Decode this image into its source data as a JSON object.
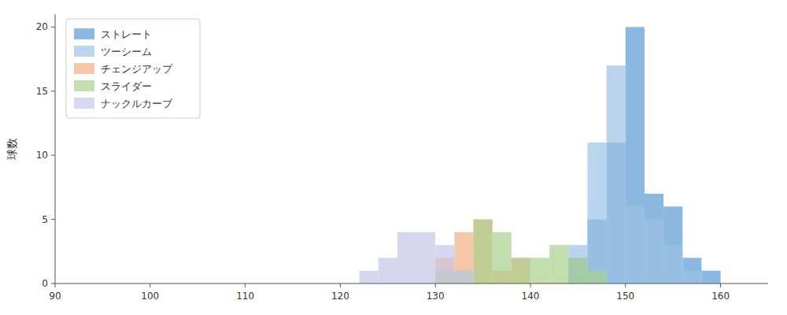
{
  "chart_data": {
    "type": "histogram",
    "ylabel": "球数",
    "bins": [
      90,
      92,
      94,
      96,
      98,
      100,
      102,
      104,
      106,
      108,
      110,
      112,
      114,
      116,
      118,
      120,
      122,
      124,
      126,
      128,
      130,
      132,
      134,
      136,
      138,
      140,
      142,
      144,
      146,
      148,
      150,
      152,
      154,
      156,
      158,
      160,
      162,
      164
    ],
    "series": [
      {
        "name": "ストレート",
        "color": "#5B9BD5",
        "values": [
          0,
          0,
          0,
          0,
          0,
          0,
          0,
          0,
          0,
          0,
          0,
          0,
          0,
          0,
          0,
          0,
          0,
          0,
          0,
          0,
          0,
          0,
          0,
          0,
          0,
          0,
          0,
          2,
          5,
          11,
          20,
          7,
          6,
          2,
          1,
          0,
          0
        ]
      },
      {
        "name": "ツーシーム",
        "color": "#9DC3E6",
        "values": [
          0,
          0,
          0,
          0,
          0,
          0,
          0,
          0,
          0,
          0,
          0,
          0,
          0,
          0,
          0,
          0,
          0,
          0,
          0,
          0,
          0,
          0,
          0,
          0,
          0,
          0,
          0,
          3,
          11,
          17,
          6,
          5,
          3,
          1,
          0,
          0,
          0
        ]
      },
      {
        "name": "チェンジアップ",
        "color": "#F4B183",
        "values": [
          0,
          0,
          0,
          0,
          0,
          0,
          0,
          0,
          0,
          0,
          0,
          0,
          0,
          0,
          0,
          0,
          0,
          0,
          0,
          0,
          2,
          4,
          5,
          1,
          2,
          0,
          0,
          0,
          0,
          0,
          0,
          0,
          0,
          0,
          0,
          0,
          0
        ]
      },
      {
        "name": "スライダー",
        "color": "#A9D18E",
        "values": [
          0,
          0,
          0,
          0,
          0,
          0,
          0,
          0,
          0,
          0,
          0,
          0,
          0,
          0,
          0,
          0,
          0,
          0,
          0,
          0,
          1,
          1,
          5,
          4,
          2,
          2,
          3,
          2,
          1,
          0,
          0,
          0,
          0,
          0,
          0,
          0,
          0
        ]
      },
      {
        "name": "ナックルカーブ",
        "color": "#C5C7E8",
        "values": [
          0,
          0,
          0,
          0,
          0,
          0,
          0,
          0,
          0,
          0,
          0,
          0,
          0,
          0,
          0,
          0,
          1,
          2,
          4,
          4,
          3,
          1,
          0,
          0,
          0,
          0,
          0,
          0,
          0,
          0,
          0,
          0,
          0,
          0,
          0,
          0,
          0
        ]
      }
    ],
    "xlim": [
      90,
      165
    ],
    "ylim": [
      0,
      21
    ],
    "xticks": [
      90,
      100,
      110,
      120,
      130,
      140,
      150,
      160
    ],
    "yticks": [
      0,
      5,
      10,
      15,
      20
    ],
    "grid": false,
    "legend": "upper left"
  }
}
